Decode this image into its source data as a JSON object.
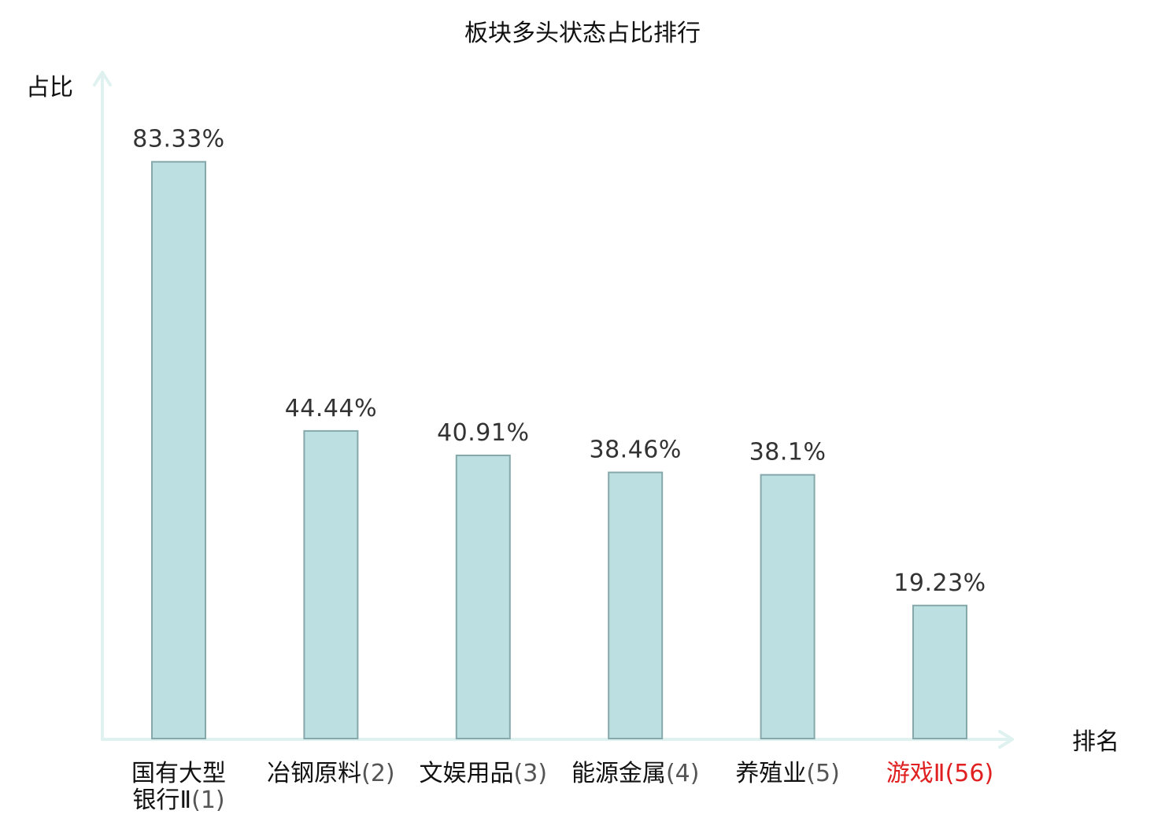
{
  "chart_data": {
    "type": "bar",
    "title": "板块多头状态占比排行",
    "ylabel": "占比",
    "xlabel": "排名",
    "ylim": [
      0,
      100
    ],
    "grid": false,
    "categories": [
      {
        "name_lines": [
          "国有大型",
          "银行Ⅱ"
        ],
        "rank": "(1)",
        "highlight": false
      },
      {
        "name_lines": [
          "冶钢原料"
        ],
        "rank": "(2)",
        "highlight": false
      },
      {
        "name_lines": [
          "文娱用品"
        ],
        "rank": "(3)",
        "highlight": false
      },
      {
        "name_lines": [
          "能源金属"
        ],
        "rank": "(4)",
        "highlight": false
      },
      {
        "name_lines": [
          "养殖业"
        ],
        "rank": "(5)",
        "highlight": false
      },
      {
        "name_lines": [
          "游戏Ⅱ"
        ],
        "rank": "(56)",
        "highlight": true
      }
    ],
    "values": [
      83.33,
      44.44,
      40.91,
      38.46,
      38.1,
      19.23
    ],
    "value_labels": [
      "83.33%",
      "44.44%",
      "40.91%",
      "38.46%",
      "38.1%",
      "19.23%"
    ],
    "colors": {
      "bar_fill": "#bce0e2",
      "bar_stroke": "#86a8ab",
      "axis": "#dff2ef",
      "highlight": "#e02020"
    }
  }
}
